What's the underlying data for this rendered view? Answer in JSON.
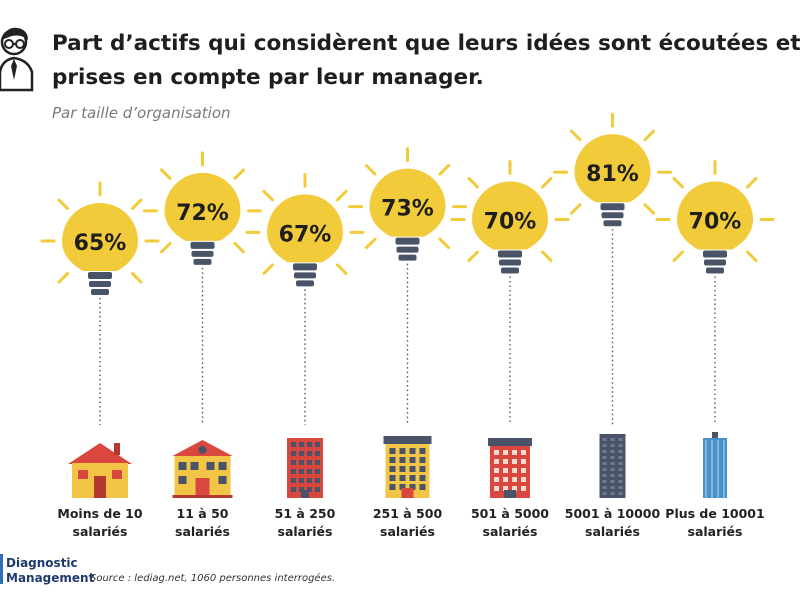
{
  "header": {
    "title_line1": "Part d’actifs qui considèrent que leurs idées sont écoutées et",
    "title_line2": "prises en compte par leur manager.",
    "subtitle": "Par taille d’organisation"
  },
  "colors": {
    "bulb": "#f2cb3b",
    "socket": "#4a5468",
    "ray": "#f2cb3b",
    "text": "#1e1e1e"
  },
  "chart_data": {
    "type": "bar",
    "title": "Part d’actifs qui considèrent que leurs idées sont écoutées et prises en compte par leur manager.",
    "subtitle": "Par taille d’organisation",
    "categories": [
      [
        "Moins de 10",
        "salariés"
      ],
      [
        "11 à 50",
        "salariés"
      ],
      [
        "51 à 250",
        "salariés"
      ],
      [
        "251 à 500",
        "salariés"
      ],
      [
        "501 à 5000",
        "salariés"
      ],
      [
        "5001 à 10000",
        "salariés"
      ],
      [
        "Plus de 10001",
        "salariés"
      ]
    ],
    "values": [
      65,
      72,
      67,
      73,
      70,
      81,
      70
    ],
    "value_labels": [
      "65%",
      "72%",
      "67%",
      "73%",
      "70%",
      "81%",
      "70%"
    ],
    "building_icons": [
      "house-icon",
      "town-hall-icon",
      "apartment-icon",
      "office-building-icon",
      "block-building-icon",
      "tower-icon",
      "skyscraper-icon"
    ]
  },
  "footer": {
    "brand_line1": "Diagnostic",
    "brand_line2": "Management",
    "source": "Source : lediag.net, 1060 personnes interrogées."
  }
}
